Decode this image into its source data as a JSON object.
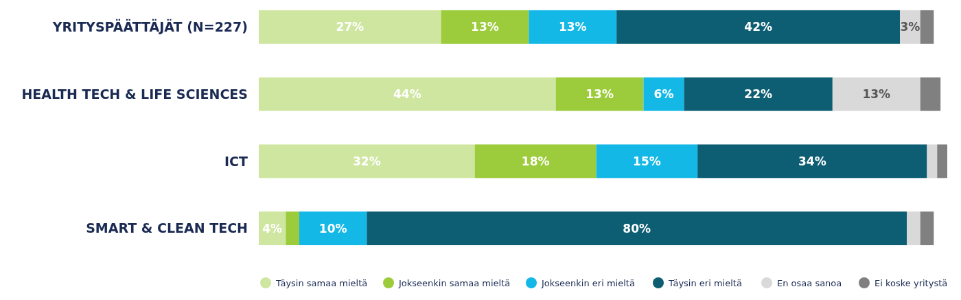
{
  "chart_data": {
    "type": "bar",
    "orientation": "horizontal",
    "stacked": true,
    "legend": "bottom right",
    "categories": [
      "YRITYSPÄÄTTÄJÄT (N=227)",
      "HEALTH TECH & LIFE SCIENCES",
      "ICT",
      "SMART & CLEAN TECH"
    ],
    "series": [
      {
        "name": "Täysin samaa mieltä",
        "color": "#cfe6a1",
        "values": [
          27,
          44,
          32,
          4
        ],
        "value_labels": [
          "27%",
          "44%",
          "32%",
          "4%"
        ]
      },
      {
        "name": "Jokseenkin samaa mieltä",
        "color": "#9ccb3b",
        "values": [
          13,
          13,
          18,
          2
        ],
        "value_labels": [
          "13%",
          "13%",
          "18%",
          null
        ]
      },
      {
        "name": "Jokseenkin eri mieltä",
        "color": "#13b8e6",
        "values": [
          13,
          6,
          15,
          10
        ],
        "value_labels": [
          "13%",
          "6%",
          "15%",
          "10%"
        ]
      },
      {
        "name": "Täysin eri mieltä",
        "color": "#0d5e73",
        "values": [
          42,
          22,
          34,
          80
        ],
        "value_labels": [
          "42%",
          "22%",
          "34%",
          "80%"
        ]
      },
      {
        "name": "En osaa sanoa",
        "color": "#d9d9d9",
        "values": [
          3,
          13,
          1.5,
          2
        ],
        "value_labels": [
          "3%",
          "13%",
          null,
          null
        ]
      },
      {
        "name": "Ei koske yritystä",
        "color": "#808080",
        "values": [
          2,
          3,
          1.5,
          2
        ],
        "value_labels": [
          null,
          null,
          null,
          null
        ]
      }
    ]
  }
}
